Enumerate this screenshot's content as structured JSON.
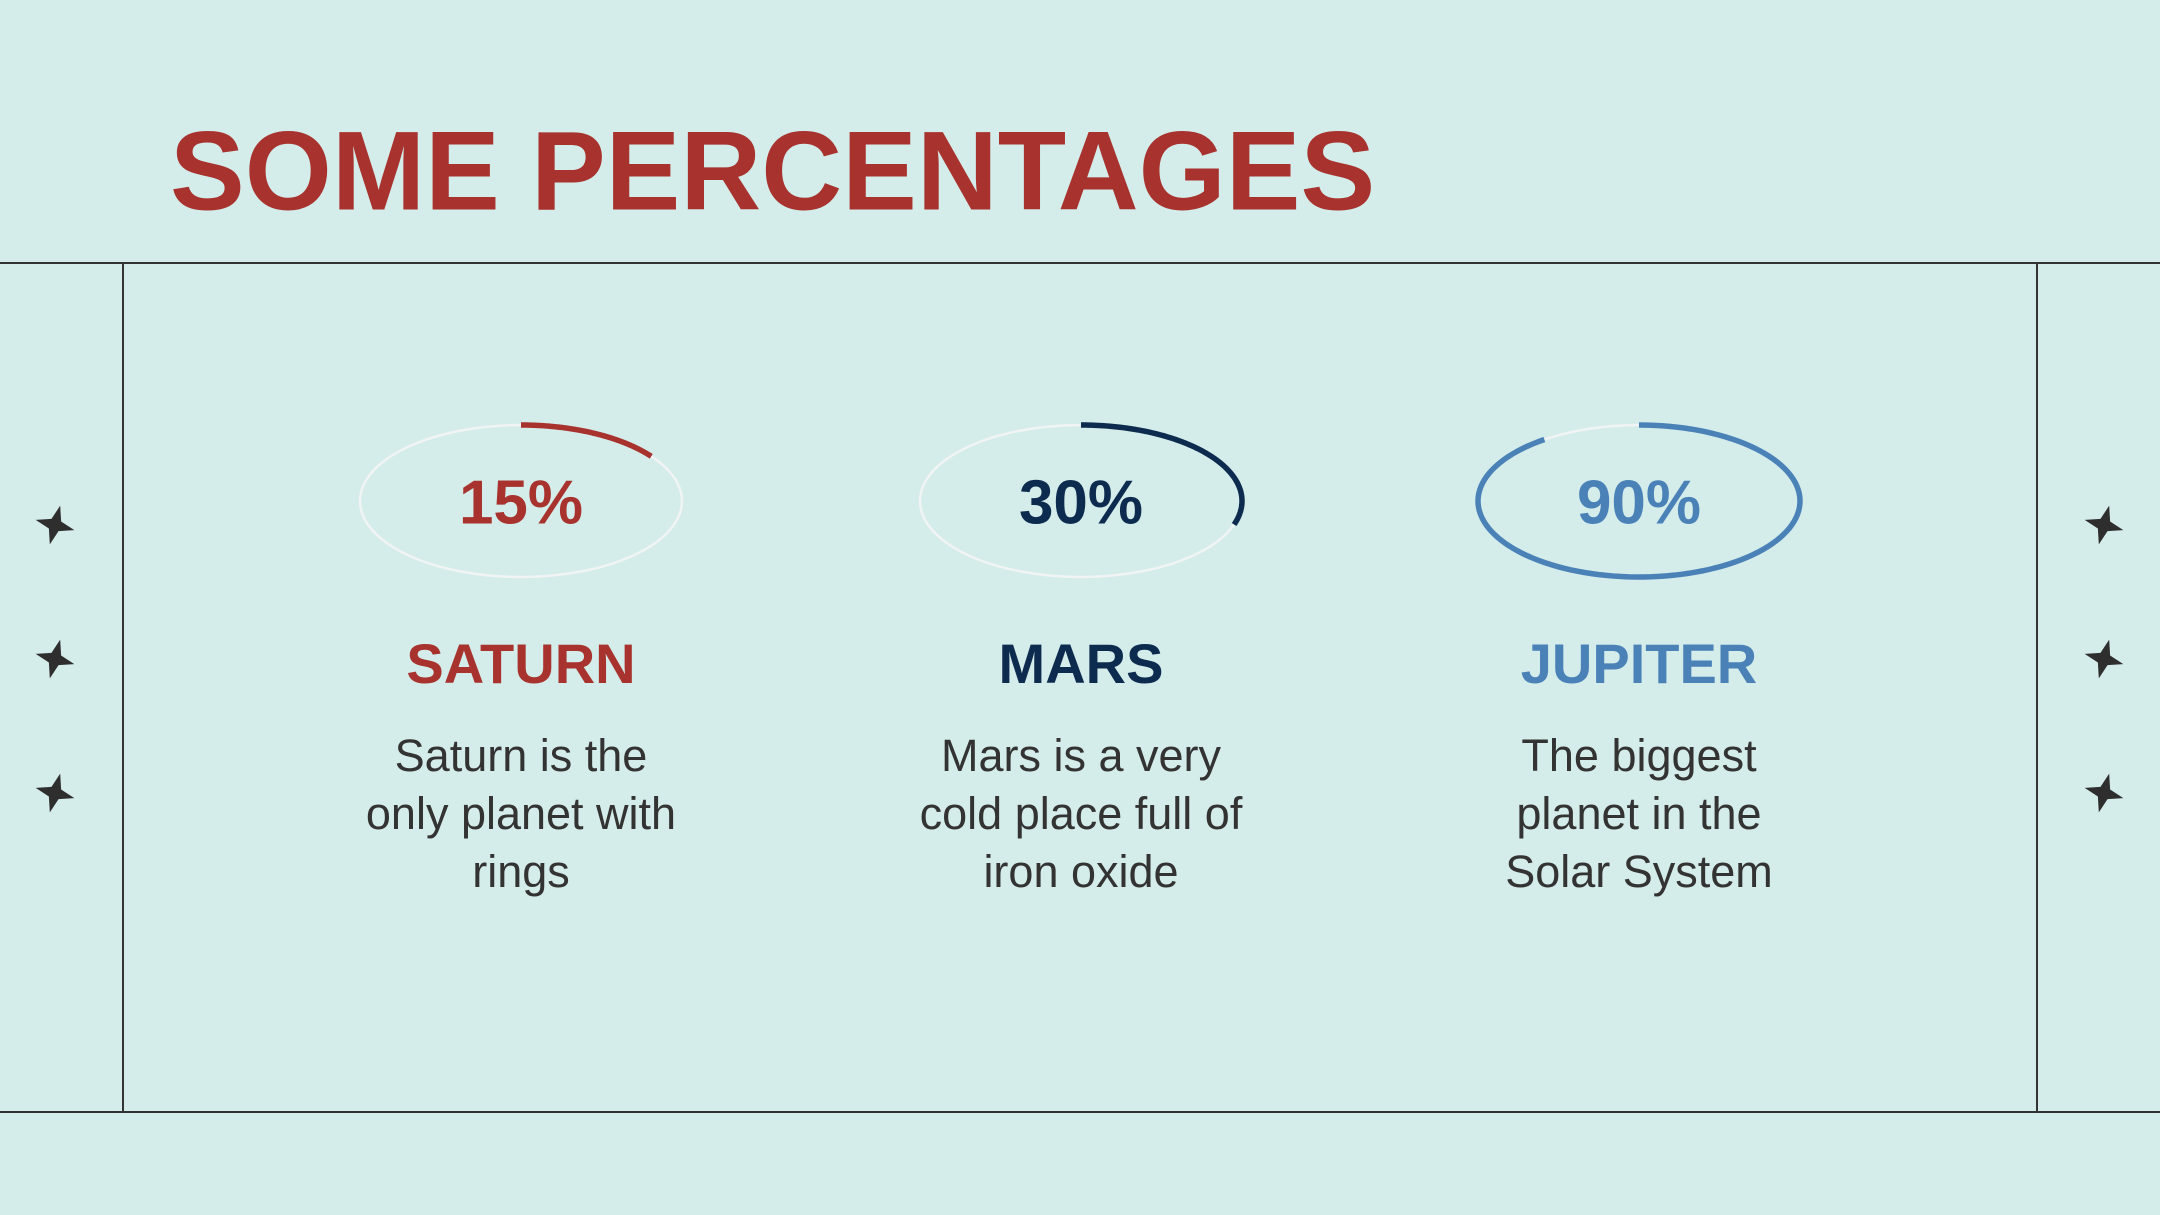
{
  "title": "SOME PERCENTAGES",
  "items": [
    {
      "value": 15,
      "value_label": "15%",
      "name": "SATURN",
      "color": "#a8322d",
      "description": [
        "Saturn is the",
        "only planet with",
        "rings"
      ]
    },
    {
      "value": 30,
      "value_label": "30%",
      "name": "MARS",
      "color": "#0d2b4e",
      "description": [
        "Mars is a very",
        "cold place full of",
        "iron oxide"
      ]
    },
    {
      "value": 90,
      "value_label": "90%",
      "name": "JUPITER",
      "color": "#4a82b8",
      "description": [
        "The biggest",
        "planet in the",
        "Solar System"
      ]
    }
  ],
  "scale_max": 100
}
